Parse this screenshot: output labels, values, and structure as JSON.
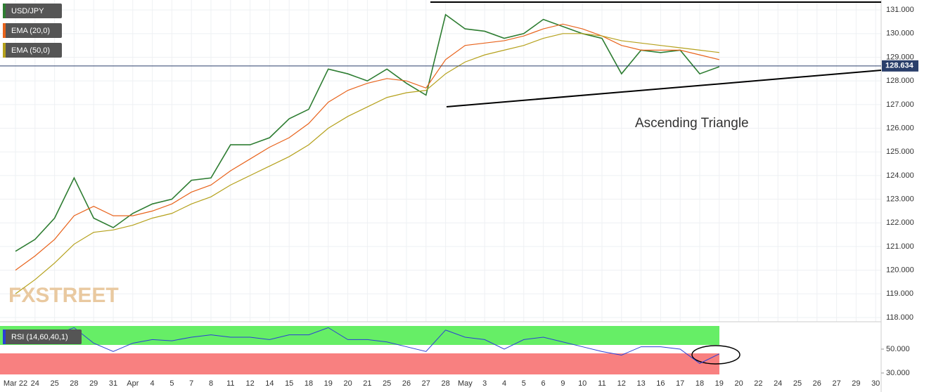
{
  "chart_data": {
    "type": "line",
    "categories": [
      "Mar 22",
      "24",
      "25",
      "28",
      "29",
      "31",
      "Apr",
      "4",
      "5",
      "7",
      "8",
      "11",
      "12",
      "14",
      "15",
      "18",
      "19",
      "20",
      "21",
      "25",
      "26",
      "27",
      "28",
      "May",
      "3",
      "4",
      "5",
      "6",
      "9",
      "10",
      "11",
      "12",
      "13",
      "16",
      "17",
      "18",
      "19",
      "20",
      "22",
      "24",
      "25",
      "26",
      "27",
      "29",
      "30"
    ],
    "series": [
      {
        "name": "USD/JPY",
        "color": "#2e7d32",
        "values": [
          120.8,
          121.3,
          122.2,
          123.9,
          122.2,
          121.8,
          122.4,
          122.8,
          123.0,
          123.8,
          123.9,
          125.3,
          125.3,
          125.6,
          126.4,
          126.8,
          128.5,
          128.3,
          128.0,
          128.5,
          127.9,
          127.4,
          130.8,
          130.2,
          130.1,
          129.8,
          130.0,
          130.6,
          130.3,
          130.0,
          129.8,
          128.3,
          129.3,
          129.2,
          129.3,
          128.3,
          128.6,
          null,
          null,
          null,
          null,
          null,
          null,
          null,
          null
        ]
      },
      {
        "name": "EMA (20,0)",
        "color": "#e8631c",
        "values": [
          120.0,
          120.6,
          121.3,
          122.3,
          122.7,
          122.3,
          122.3,
          122.5,
          122.8,
          123.3,
          123.6,
          124.2,
          124.7,
          125.2,
          125.6,
          126.2,
          127.1,
          127.6,
          127.9,
          128.1,
          128.0,
          127.7,
          128.9,
          129.5,
          129.6,
          129.7,
          129.9,
          130.2,
          130.4,
          130.2,
          129.9,
          129.5,
          129.3,
          129.3,
          129.3,
          129.1,
          128.9,
          null,
          null,
          null,
          null,
          null,
          null,
          null,
          null
        ]
      },
      {
        "name": "EMA (50,0)",
        "color": "#b5a11c",
        "values": [
          119.0,
          119.6,
          120.3,
          121.1,
          121.6,
          121.7,
          121.9,
          122.2,
          122.4,
          122.8,
          123.1,
          123.6,
          124.0,
          124.4,
          124.8,
          125.3,
          126.0,
          126.5,
          126.9,
          127.3,
          127.5,
          127.6,
          128.3,
          128.8,
          129.1,
          129.3,
          129.5,
          129.8,
          130.0,
          130.0,
          129.9,
          129.7,
          129.6,
          129.5,
          129.4,
          129.3,
          129.2,
          null,
          null,
          null,
          null,
          null,
          null,
          null,
          null
        ]
      }
    ],
    "ylim": [
      117.82,
      131.42
    ],
    "yticks": [
      {
        "value": 118,
        "label": "118.000"
      },
      {
        "value": 119,
        "label": "119.000"
      },
      {
        "value": 120,
        "label": "120.000"
      },
      {
        "value": 121,
        "label": "121.000"
      },
      {
        "value": 122,
        "label": "122.000"
      },
      {
        "value": 123,
        "label": "123.000"
      },
      {
        "value": 124,
        "label": "124.000"
      },
      {
        "value": 125,
        "label": "125.000"
      },
      {
        "value": 126,
        "label": "126.000"
      },
      {
        "value": 127,
        "label": "127.000"
      },
      {
        "value": 128,
        "label": "128.000"
      },
      {
        "value": 129,
        "label": "129.000"
      },
      {
        "value": 130,
        "label": "130.000"
      },
      {
        "value": 131,
        "label": "131.000"
      }
    ],
    "last_price": {
      "value": 128.634,
      "label": "128.634"
    },
    "annotation": "Ascending Triangle",
    "watermark": "FXSTREET",
    "grid": true,
    "rsi": {
      "name": "RSI (14,60,40,1)",
      "color": "#2b3fd6",
      "values": [
        62,
        60,
        62,
        68,
        55,
        48,
        55,
        58,
        57,
        60,
        62,
        60,
        60,
        58,
        62,
        62,
        68,
        58,
        58,
        56,
        52,
        48,
        66,
        60,
        58,
        50,
        58,
        60,
        56,
        52,
        48,
        45,
        52,
        52,
        50,
        38,
        46,
        null,
        null,
        null,
        null,
        null,
        null,
        null,
        null
      ],
      "ylim": [
        18.8,
        69.4
      ],
      "yticks": [
        {
          "value": 30,
          "label": "30.000"
        },
        {
          "value": 50,
          "label": "50.000"
        }
      ]
    }
  }
}
